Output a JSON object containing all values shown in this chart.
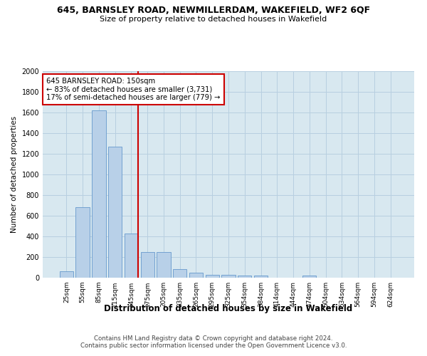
{
  "title1": "645, BARNSLEY ROAD, NEWMILLERDAM, WAKEFIELD, WF2 6QF",
  "title2": "Size of property relative to detached houses in Wakefield",
  "xlabel": "Distribution of detached houses by size in Wakefield",
  "ylabel": "Number of detached properties",
  "categories": [
    "25sqm",
    "55sqm",
    "85sqm",
    "115sqm",
    "145sqm",
    "175sqm",
    "205sqm",
    "235sqm",
    "265sqm",
    "295sqm",
    "325sqm",
    "354sqm",
    "384sqm",
    "414sqm",
    "444sqm",
    "474sqm",
    "504sqm",
    "534sqm",
    "564sqm",
    "594sqm",
    "624sqm"
  ],
  "values": [
    60,
    680,
    1620,
    1270,
    430,
    245,
    245,
    80,
    50,
    30,
    25,
    20,
    20,
    0,
    0,
    20,
    0,
    0,
    0,
    0,
    0
  ],
  "bar_color": "#b8d0e8",
  "bar_edge_color": "#6699cc",
  "annotation_text": "645 BARNSLEY ROAD: 150sqm\n← 83% of detached houses are smaller (3,731)\n17% of semi-detached houses are larger (779) →",
  "annotation_box_color": "#ffffff",
  "annotation_box_edge": "#cc0000",
  "vline_color": "#cc0000",
  "grid_color": "#b8cfe0",
  "plot_background": "#d8e8f0",
  "footer_text": "Contains HM Land Registry data © Crown copyright and database right 2024.\nContains public sector information licensed under the Open Government Licence v3.0.",
  "ylim": [
    0,
    2000
  ],
  "yticks": [
    0,
    200,
    400,
    600,
    800,
    1000,
    1200,
    1400,
    1600,
    1800,
    2000
  ]
}
